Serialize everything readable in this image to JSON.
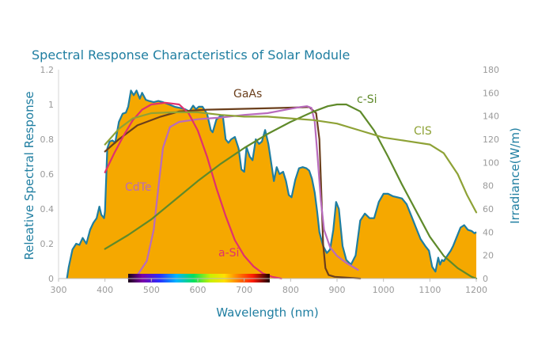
{
  "chart_data": {
    "type": "line",
    "title": "Spectral Response Characteristics of Solar Module",
    "xlabel": "Wavelength (nm)",
    "ylabel": "Releative Spectral Response",
    "y2label": "Irradiance(W/m)",
    "xlim": [
      300,
      1200
    ],
    "ylim": [
      0,
      1.2
    ],
    "y2lim": [
      0,
      180
    ],
    "x_ticks": [
      "300",
      "400",
      "500",
      "600",
      "700",
      "800",
      "900",
      "1000",
      "1100",
      "1200"
    ],
    "y_ticks": [
      "0",
      "0.2",
      "0.4",
      "0.6",
      "0.8",
      "1",
      "1.2"
    ],
    "y2_ticks": [
      "0",
      "20",
      "40",
      "60",
      "80",
      "100",
      "120",
      "140",
      "160",
      "180"
    ],
    "grid": false,
    "irradiance": {
      "axis": "right",
      "fill_color": "#f5a800",
      "edge_color": "#1f7ea1",
      "points": [
        [
          318,
          0
        ],
        [
          322,
          10
        ],
        [
          330,
          25
        ],
        [
          338,
          30
        ],
        [
          345,
          29
        ],
        [
          352,
          35
        ],
        [
          360,
          30
        ],
        [
          368,
          42
        ],
        [
          375,
          48
        ],
        [
          382,
          52
        ],
        [
          388,
          62
        ],
        [
          392,
          55
        ],
        [
          398,
          52
        ],
        [
          400,
          58
        ],
        [
          405,
          112
        ],
        [
          410,
          118
        ],
        [
          416,
          119
        ],
        [
          422,
          117
        ],
        [
          430,
          135
        ],
        [
          438,
          142
        ],
        [
          445,
          143
        ],
        [
          450,
          148
        ],
        [
          456,
          162
        ],
        [
          462,
          158
        ],
        [
          468,
          162
        ],
        [
          475,
          155
        ],
        [
          480,
          160
        ],
        [
          488,
          154
        ],
        [
          495,
          153
        ],
        [
          505,
          152
        ],
        [
          515,
          153
        ],
        [
          525,
          152
        ],
        [
          538,
          150
        ],
        [
          550,
          148
        ],
        [
          562,
          147
        ],
        [
          572,
          146
        ],
        [
          582,
          144
        ],
        [
          590,
          149
        ],
        [
          596,
          146
        ],
        [
          602,
          148
        ],
        [
          610,
          148
        ],
        [
          620,
          142
        ],
        [
          628,
          128
        ],
        [
          632,
          126
        ],
        [
          640,
          137
        ],
        [
          648,
          140
        ],
        [
          654,
          140
        ],
        [
          660,
          120
        ],
        [
          666,
          117
        ],
        [
          672,
          120
        ],
        [
          680,
          122
        ],
        [
          688,
          112
        ],
        [
          694,
          94
        ],
        [
          700,
          92
        ],
        [
          705,
          113
        ],
        [
          712,
          105
        ],
        [
          718,
          102
        ],
        [
          725,
          120
        ],
        [
          732,
          116
        ],
        [
          738,
          118
        ],
        [
          745,
          128
        ],
        [
          752,
          116
        ],
        [
          758,
          100
        ],
        [
          764,
          84
        ],
        [
          770,
          96
        ],
        [
          776,
          90
        ],
        [
          784,
          92
        ],
        [
          790,
          84
        ],
        [
          796,
          72
        ],
        [
          802,
          70
        ],
        [
          810,
          85
        ],
        [
          818,
          95
        ],
        [
          826,
          96
        ],
        [
          834,
          95
        ],
        [
          840,
          93
        ],
        [
          846,
          86
        ],
        [
          852,
          74
        ],
        [
          857,
          58
        ],
        [
          862,
          40
        ],
        [
          870,
          28
        ],
        [
          878,
          22
        ],
        [
          885,
          25
        ],
        [
          892,
          42
        ],
        [
          898,
          66
        ],
        [
          904,
          60
        ],
        [
          912,
          28
        ],
        [
          920,
          16
        ],
        [
          930,
          12
        ],
        [
          940,
          20
        ],
        [
          950,
          50
        ],
        [
          960,
          56
        ],
        [
          970,
          52
        ],
        [
          980,
          52
        ],
        [
          990,
          66
        ],
        [
          1000,
          73
        ],
        [
          1010,
          73
        ],
        [
          1020,
          71
        ],
        [
          1030,
          70
        ],
        [
          1040,
          69
        ],
        [
          1050,
          64
        ],
        [
          1060,
          54
        ],
        [
          1070,
          44
        ],
        [
          1080,
          34
        ],
        [
          1090,
          28
        ],
        [
          1098,
          24
        ],
        [
          1105,
          10
        ],
        [
          1112,
          6
        ],
        [
          1118,
          18
        ],
        [
          1122,
          12
        ],
        [
          1126,
          16
        ],
        [
          1130,
          15
        ],
        [
          1138,
          20
        ],
        [
          1145,
          24
        ],
        [
          1150,
          28
        ],
        [
          1158,
          36
        ],
        [
          1166,
          44
        ],
        [
          1174,
          46
        ],
        [
          1182,
          42
        ],
        [
          1190,
          41
        ],
        [
          1196,
          39
        ],
        [
          1200,
          40
        ]
      ]
    },
    "series": [
      {
        "name": "GaAs",
        "color": "#6b3f1c",
        "points": [
          [
            400,
            0.73
          ],
          [
            430,
            0.8
          ],
          [
            470,
            0.88
          ],
          [
            520,
            0.93
          ],
          [
            560,
            0.96
          ],
          [
            620,
            0.97
          ],
          [
            700,
            0.975
          ],
          [
            780,
            0.98
          ],
          [
            840,
            0.985
          ],
          [
            855,
            0.95
          ],
          [
            862,
            0.8
          ],
          [
            866,
            0.5
          ],
          [
            870,
            0.2
          ],
          [
            875,
            0.06
          ],
          [
            882,
            0.02
          ],
          [
            895,
            0.01
          ],
          [
            950,
            0.0
          ]
        ]
      },
      {
        "name": "CdTe",
        "color": "#b86bbd",
        "points": [
          [
            450,
            0.0
          ],
          [
            470,
            0.02
          ],
          [
            490,
            0.1
          ],
          [
            505,
            0.28
          ],
          [
            515,
            0.52
          ],
          [
            525,
            0.75
          ],
          [
            540,
            0.87
          ],
          [
            560,
            0.9
          ],
          [
            600,
            0.915
          ],
          [
            650,
            0.925
          ],
          [
            700,
            0.94
          ],
          [
            750,
            0.95
          ],
          [
            790,
            0.97
          ],
          [
            820,
            0.985
          ],
          [
            835,
            0.99
          ],
          [
            845,
            0.98
          ],
          [
            852,
            0.9
          ],
          [
            858,
            0.7
          ],
          [
            865,
            0.45
          ],
          [
            872,
            0.28
          ],
          [
            885,
            0.18
          ],
          [
            900,
            0.13
          ],
          [
            920,
            0.09
          ],
          [
            945,
            0.05
          ]
        ]
      },
      {
        "name": "a-Si",
        "color": "#e0316e",
        "points": [
          [
            400,
            0.61
          ],
          [
            420,
            0.72
          ],
          [
            440,
            0.82
          ],
          [
            460,
            0.91
          ],
          [
            480,
            0.97
          ],
          [
            500,
            1.0
          ],
          [
            530,
            1.01
          ],
          [
            560,
            1.0
          ],
          [
            580,
            0.95
          ],
          [
            600,
            0.85
          ],
          [
            620,
            0.7
          ],
          [
            640,
            0.52
          ],
          [
            660,
            0.36
          ],
          [
            680,
            0.22
          ],
          [
            700,
            0.13
          ],
          [
            720,
            0.07
          ],
          [
            740,
            0.03
          ],
          [
            760,
            0.01
          ],
          [
            780,
            0.0
          ]
        ]
      },
      {
        "name": "c-Si",
        "color": "#5f8a2a",
        "points": [
          [
            400,
            0.17
          ],
          [
            450,
            0.25
          ],
          [
            500,
            0.34
          ],
          [
            550,
            0.45
          ],
          [
            600,
            0.56
          ],
          [
            650,
            0.66
          ],
          [
            700,
            0.75
          ],
          [
            750,
            0.83
          ],
          [
            800,
            0.9
          ],
          [
            850,
            0.96
          ],
          [
            880,
            0.99
          ],
          [
            900,
            1.0
          ],
          [
            920,
            1.0
          ],
          [
            950,
            0.96
          ],
          [
            980,
            0.85
          ],
          [
            1010,
            0.7
          ],
          [
            1040,
            0.54
          ],
          [
            1070,
            0.39
          ],
          [
            1100,
            0.24
          ],
          [
            1130,
            0.13
          ],
          [
            1160,
            0.06
          ],
          [
            1190,
            0.01
          ],
          [
            1200,
            0.0
          ]
        ]
      },
      {
        "name": "CIS",
        "color": "#8ea236",
        "points": [
          [
            400,
            0.77
          ],
          [
            430,
            0.86
          ],
          [
            460,
            0.92
          ],
          [
            500,
            0.95
          ],
          [
            550,
            0.955
          ],
          [
            600,
            0.955
          ],
          [
            650,
            0.94
          ],
          [
            700,
            0.93
          ],
          [
            750,
            0.93
          ],
          [
            800,
            0.92
          ],
          [
            850,
            0.91
          ],
          [
            900,
            0.89
          ],
          [
            950,
            0.85
          ],
          [
            1000,
            0.81
          ],
          [
            1050,
            0.79
          ],
          [
            1100,
            0.77
          ],
          [
            1130,
            0.72
          ],
          [
            1160,
            0.6
          ],
          [
            1180,
            0.48
          ],
          [
            1200,
            0.38
          ]
        ]
      }
    ],
    "spectrum_bar": {
      "x_start": 450,
      "x_end": 755
    }
  }
}
